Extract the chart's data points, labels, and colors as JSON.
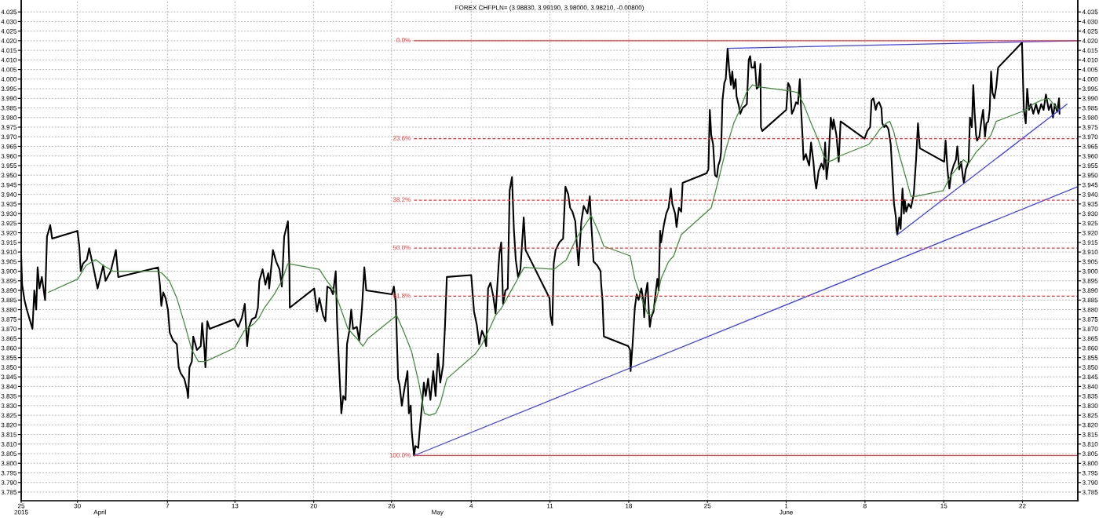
{
  "chart_data": {
    "type": "line",
    "title": "FOREX CHFPLN= (3.98830, 3.99190, 3.98000, 3.98210, -0.00800)",
    "xlim": [
      "2015-03-25T00:00",
      "2015-06-26T22:00"
    ],
    "xticks": [
      {
        "value": "2015-03-25",
        "label": "25"
      },
      {
        "value": "2015-03-30",
        "label": "30"
      },
      {
        "value": "2015-04-07",
        "label": "7"
      },
      {
        "value": "2015-04-13",
        "label": "13"
      },
      {
        "value": "2015-04-20",
        "label": "20"
      },
      {
        "value": "2015-04-26T22:00",
        "label": "26"
      },
      {
        "value": "2015-05-04",
        "label": "4"
      },
      {
        "value": "2015-05-11",
        "label": "11"
      },
      {
        "value": "2015-05-18",
        "label": "18"
      },
      {
        "value": "2015-05-25",
        "label": "25"
      },
      {
        "value": "2015-06-01",
        "label": "1"
      },
      {
        "value": "2015-06-08",
        "label": "8"
      },
      {
        "value": "2015-06-15",
        "label": "15"
      },
      {
        "value": "2015-06-22",
        "label": "22"
      }
    ],
    "x2lim": [
      "2015-03-25T00:00",
      "2015-06-26T22:00"
    ],
    "x2ticks": [
      {
        "value": "2015-03-25",
        "label": "2015"
      },
      {
        "value": "2015-04-01",
        "label": "April"
      },
      {
        "value": "2015-05-01",
        "label": "May"
      },
      {
        "value": "2015-06-01",
        "label": "June"
      }
    ],
    "ylim": [
      3.7805,
      4.0412
    ],
    "yticks": [
      3.785,
      {
        "value": 3.79,
        "label": "3.790"
      },
      3.795,
      {
        "value": 3.8,
        "label": "3.800"
      },
      3.805,
      {
        "value": 3.81,
        "label": "3.810"
      },
      3.815,
      {
        "value": 3.82,
        "label": "3.820"
      },
      3.825,
      {
        "value": 3.83,
        "label": "3.830"
      },
      3.835,
      {
        "value": 3.84,
        "label": "3.840"
      },
      3.845,
      {
        "value": 3.85,
        "label": "3.850"
      },
      3.855,
      {
        "value": 3.86,
        "label": "3.860"
      },
      3.865,
      {
        "value": 3.87,
        "label": "3.870"
      },
      3.875,
      {
        "value": 3.88,
        "label": "3.880"
      },
      3.885,
      {
        "value": 3.89,
        "label": "3.890"
      },
      3.895,
      {
        "value": 3.9,
        "label": "3.900"
      },
      3.905,
      {
        "value": 3.91,
        "label": "3.910"
      },
      3.915,
      {
        "value": 3.92,
        "label": "3.920"
      },
      3.925,
      {
        "value": 3.93,
        "label": "3.930"
      },
      3.935,
      {
        "value": 3.94,
        "label": "3.940"
      },
      3.945,
      {
        "value": 3.95,
        "label": "3.950"
      },
      3.955,
      {
        "value": 3.96,
        "label": "3.960"
      },
      3.965,
      {
        "value": 3.97,
        "label": "3.970"
      },
      3.975,
      {
        "value": 3.98,
        "label": "3.980"
      },
      3.985,
      {
        "value": 3.99,
        "label": "3.990"
      },
      3.995,
      {
        "value": 4.0,
        "label": "4.000"
      },
      4.005,
      {
        "value": 4.01,
        "label": "4.010"
      },
      4.015,
      {
        "value": 4.02,
        "label": "4.020"
      },
      4.025,
      {
        "value": 4.03,
        "label": "4.030"
      },
      4.035
    ],
    "y2lim": [
      3.7805,
      4.0412
    ],
    "y2ticks": [
      3.785,
      {
        "value": 3.79,
        "label": "3.790"
      },
      3.795,
      {
        "value": 3.8,
        "label": "3.800"
      },
      3.805,
      {
        "value": 3.81,
        "label": "3.810"
      },
      3.815,
      {
        "value": 3.82,
        "label": "3.820"
      },
      3.825,
      {
        "value": 3.83,
        "label": "3.830"
      },
      3.835,
      {
        "value": 3.84,
        "label": "3.840"
      },
      3.845,
      {
        "value": 3.85,
        "label": "3.850"
      },
      3.855,
      {
        "value": 3.86,
        "label": "3.860"
      },
      3.865,
      {
        "value": 3.87,
        "label": "3.870"
      },
      3.875,
      {
        "value": 3.88,
        "label": "3.880"
      },
      3.885,
      {
        "value": 3.89,
        "label": "3.890"
      },
      3.895,
      {
        "value": 3.9,
        "label": "3.900"
      },
      3.905,
      {
        "value": 3.91,
        "label": "3.910"
      },
      3.915,
      {
        "value": 3.92,
        "label": "3.920"
      },
      3.925,
      {
        "value": 3.93,
        "label": "3.930"
      },
      3.935,
      {
        "value": 3.94,
        "label": "3.940"
      },
      3.945,
      {
        "value": 3.95,
        "label": "3.950"
      },
      3.955,
      {
        "value": 3.96,
        "label": "3.960"
      },
      3.965,
      {
        "value": 3.97,
        "label": "3.970"
      },
      3.975,
      {
        "value": 3.98,
        "label": "3.980"
      },
      3.985,
      {
        "value": 3.99,
        "label": "3.990"
      },
      3.995,
      {
        "value": 4.0,
        "label": "4.000"
      },
      4.005,
      {
        "value": 4.01,
        "label": "4.010"
      },
      4.015,
      {
        "value": 4.02,
        "label": "4.020"
      },
      4.025,
      {
        "value": 4.03,
        "label": "4.030"
      },
      4.035
    ],
    "grid": true,
    "series": [
      {
        "color": "#000000",
        "x": [
          "2015-03-25T00:00",
          "2015-03-25T02:00",
          "2015-03-25T07:00",
          "2015-03-25T12:00",
          "2015-03-25T18:00",
          "2015-03-26T00:00",
          "2015-03-26T04:00",
          "2015-03-26T08:00",
          "2015-03-26T11:00",
          "2015-03-26T15:00",
          "2015-03-26T20:00",
          "2015-03-27T03:00",
          "2015-03-27T07:00",
          "2015-03-27T14:00",
          "2015-03-27T18:00",
          "2015-03-30T00:00",
          "2015-03-30T04:00",
          "2015-03-30T07:00",
          "2015-03-30T12:00",
          "2015-03-30T20:00",
          "2015-03-31T01:00",
          "2015-03-31T10:00",
          "2015-03-31T19:00",
          "2015-04-01T01:00",
          "2015-04-01T07:00",
          "2015-04-01T12:00",
          "2015-04-01T23:00",
          "2015-04-02T10:00",
          "2015-04-02T15:00",
          "2015-04-06T04:00",
          "2015-04-06T08:00",
          "2015-04-06T11:00",
          "2015-04-06T15:00",
          "2015-04-06T20:00",
          "2015-04-07T01:00",
          "2015-04-07T05:00",
          "2015-04-07T12:00",
          "2015-04-07T20:00",
          "2015-04-08T00:00",
          "2015-04-08T04:00",
          "2015-04-08T12:00",
          "2015-04-08T18:00",
          "2015-04-08T20:00",
          "2015-04-08T23:00",
          "2015-04-09T04:00",
          "2015-04-09T07:00",
          "2015-04-09T15:00",
          "2015-04-09T23:00",
          "2015-04-10T02:00",
          "2015-04-10T07:00",
          "2015-04-10T09:00",
          "2015-04-10T13:00",
          "2015-04-10T18:00",
          "2015-04-12T23:00",
          "2015-04-13T07:00",
          "2015-04-13T15:00",
          "2015-04-13T21:00",
          "2015-04-14T02:00",
          "2015-04-14T06:00",
          "2015-04-14T12:00",
          "2015-04-14T20:00",
          "2015-04-15T01:00",
          "2015-04-15T04:00",
          "2015-04-15T11:00",
          "2015-04-15T17:00",
          "2015-04-15T23:00",
          "2015-04-16T01:00",
          "2015-04-16T09:00",
          "2015-04-16T16:00",
          "2015-04-16T23:00",
          "2015-04-17T04:00",
          "2015-04-17T09:00",
          "2015-04-17T17:00",
          "2015-04-17T20:00",
          "2015-04-17T21:00",
          "2015-04-20T01:00",
          "2015-04-20T07:00",
          "2015-04-20T12:00",
          "2015-04-20T20:00",
          "2015-04-21T01:00",
          "2015-04-21T05:00",
          "2015-04-21T12:00",
          "2015-04-21T17:00",
          "2015-04-21T23:00",
          "2015-04-22T02:00",
          "2015-04-22T07:00",
          "2015-04-22T11:00",
          "2015-04-22T15:00",
          "2015-04-22T20:00",
          "2015-04-22T23:00",
          "2015-04-23T04:00",
          "2015-04-23T08:00",
          "2015-04-23T12:00",
          "2015-04-23T20:00",
          "2015-04-24T01:00",
          "2015-04-24T07:00",
          "2015-04-24T12:00",
          "2015-04-24T16:00",
          "2015-04-26T23:00",
          "2015-04-27T03:00",
          "2015-04-27T07:00",
          "2015-04-27T12:00",
          "2015-04-27T15:00",
          "2015-04-27T20:00",
          "2015-04-28T01:00",
          "2015-04-28T08:00",
          "2015-04-28T11:00",
          "2015-04-28T15:00",
          "2015-04-28T17:00",
          "2015-04-28T22:00",
          "2015-04-29T01:00",
          "2015-04-29T07:00",
          "2015-04-29T10:00",
          "2015-04-29T15:00",
          "2015-04-29T19:00",
          "2015-04-29T23:00",
          "2015-04-30T04:00",
          "2015-04-30T09:00",
          "2015-04-30T15:00",
          "2015-04-30T20:00",
          "2015-05-01T01:00",
          "2015-05-01T06:00",
          "2015-05-01T12:00",
          "2015-05-01T16:00",
          "2015-05-01T20:00",
          "2015-05-04T00:00",
          "2015-05-04T06:00",
          "2015-05-04T12:00",
          "2015-05-04T17:00",
          "2015-05-04T23:00",
          "2015-05-05T04:00",
          "2015-05-05T08:00",
          "2015-05-05T12:00",
          "2015-05-05T17:00",
          "2015-05-05T23:00",
          "2015-05-06T04:00",
          "2015-05-06T12:00",
          "2015-05-06T16:00",
          "2015-05-06T20:00",
          "2015-05-07T01:00",
          "2015-05-07T06:00",
          "2015-05-07T10:00",
          "2015-05-07T15:00",
          "2015-05-07T19:00",
          "2015-05-07T23:00",
          "2015-05-08T04:00",
          "2015-05-08T09:00",
          "2015-05-08T16:00",
          "2015-05-08T20:00",
          "2015-05-10T23:00",
          "2015-05-11T01:00",
          "2015-05-11T05:00",
          "2015-05-11T08:00",
          "2015-05-11T12:00",
          "2015-05-11T20:00",
          "2015-05-12T04:00",
          "2015-05-12T09:00",
          "2015-05-12T15:00",
          "2015-05-12T19:00",
          "2015-05-13T00:00",
          "2015-05-13T06:00",
          "2015-05-13T09:00",
          "2015-05-13T13:00",
          "2015-05-13T19:00",
          "2015-05-14T00:00",
          "2015-05-14T08:00",
          "2015-05-14T13:00",
          "2015-05-14T16:00",
          "2015-05-14T21:00",
          "2015-05-15T05:00",
          "2015-05-15T12:00",
          "2015-05-15T13:00",
          "2015-05-15T16:00",
          "2015-05-15T19:00",
          "2015-05-17T23:00",
          "2015-05-18T03:00",
          "2015-05-18T04:00",
          "2015-05-18T08:00",
          "2015-05-18T11:00",
          "2015-05-18T13:00",
          "2015-05-18T17:00",
          "2015-05-18T21:00",
          "2015-05-19T03:00",
          "2015-05-19T07:00",
          "2015-05-19T09:00",
          "2015-05-19T12:00",
          "2015-05-19T16:00",
          "2015-05-19T19:00",
          "2015-05-19T21:00",
          "2015-05-20T00:00",
          "2015-05-20T05:00",
          "2015-05-20T10:00",
          "2015-05-20T13:00",
          "2015-05-20T16:00",
          "2015-05-20T19:00",
          "2015-05-20T21:00",
          "2015-05-21T03:00",
          "2015-05-21T08:00",
          "2015-05-21T13:00",
          "2015-05-21T18:00",
          "2015-05-21T21:00",
          "2015-05-22T03:00",
          "2015-05-22T06:00",
          "2015-05-22T11:00",
          "2015-05-22T16:00",
          "2015-05-22T19:00",
          "2015-05-24T22:00",
          "2015-05-25T02:00",
          "2015-05-25T05:00",
          "2015-05-25T08:00",
          "2015-05-25T12:00",
          "2015-05-25T16:00",
          "2015-05-25T20:00",
          "2015-05-25T23:00",
          "2015-05-26T03:00",
          "2015-05-26T05:00",
          "2015-05-26T08:00",
          "2015-05-26T12:00",
          "2015-05-26T15:00",
          "2015-05-26T19:00",
          "2015-05-26T22:00",
          "2015-05-27T02:00",
          "2015-05-27T05:00",
          "2015-05-27T08:00",
          "2015-05-27T12:00",
          "2015-05-27T14:00",
          "2015-05-27T19:00",
          "2015-05-27T22:00",
          "2015-05-28T03:00",
          "2015-05-28T08:00",
          "2015-05-28T12:00",
          "2015-05-28T16:00",
          "2015-05-28T19:00",
          "2015-05-28T22:00",
          "2015-05-29T03:00",
          "2015-05-29T05:00",
          "2015-05-29T09:00",
          "2015-05-29T13:00",
          "2015-05-29T17:00",
          "2015-05-29T18:00",
          "2015-05-29T21:00",
          "2015-06-01T00:00",
          "2015-06-01T04:00",
          "2015-06-01T08:00",
          "2015-06-01T12:00",
          "2015-06-01T16:00",
          "2015-06-01T21:00",
          "2015-06-02T01:00",
          "2015-06-02T05:00",
          "2015-06-02T08:00",
          "2015-06-02T11:00",
          "2015-06-02T13:00",
          "2015-06-02T18:00",
          "2015-06-02T21:00",
          "2015-06-03T01:00",
          "2015-06-03T05:00",
          "2015-06-03T10:00",
          "2015-06-03T13:00",
          "2015-06-03T16:00",
          "2015-06-03T21:00",
          "2015-06-04T03:00",
          "2015-06-04T08:00",
          "2015-06-04T11:00",
          "2015-06-04T14:00",
          "2015-06-04T18:00",
          "2015-06-04T23:00",
          "2015-06-05T03:00",
          "2015-06-05T05:00",
          "2015-06-05T11:00",
          "2015-06-05T16:00",
          "2015-06-05T20:00",
          "2015-06-07T23:00",
          "2015-06-08T05:00",
          "2015-06-08T11:00",
          "2015-06-08T14:00",
          "2015-06-08T18:00",
          "2015-06-08T23:00",
          "2015-06-09T02:00",
          "2015-06-09T06:00",
          "2015-06-09T11:00",
          "2015-06-09T13:00",
          "2015-06-09T17:00",
          "2015-06-09T21:00",
          "2015-06-10T02:00",
          "2015-06-10T07:00",
          "2015-06-10T11:00",
          "2015-06-10T14:00",
          "2015-06-10T18:00",
          "2015-06-10T19:00",
          "2015-06-10T21:00",
          "2015-06-11T01:00",
          "2015-06-11T04:00",
          "2015-06-11T08:00",
          "2015-06-11T11:00",
          "2015-06-11T13:00",
          "2015-06-11T16:00",
          "2015-06-11T21:00",
          "2015-06-12T02:00",
          "2015-06-12T08:00",
          "2015-06-12T13:00",
          "2015-06-12T17:00",
          "2015-06-12T21:00",
          "2015-06-15T01:00",
          "2015-06-15T04:00",
          "2015-06-15T08:00",
          "2015-06-15T12:00",
          "2015-06-15T16:00",
          "2015-06-15T21:00",
          "2015-06-16T02:00",
          "2015-06-16T05:00",
          "2015-06-16T09:00",
          "2015-06-16T13:00",
          "2015-06-16T17:00",
          "2015-06-16T19:00",
          "2015-06-16T23:00",
          "2015-06-17T05:00",
          "2015-06-17T08:00",
          "2015-06-17T12:00",
          "2015-06-17T15:00",
          "2015-06-17T18:00",
          "2015-06-17T21:00",
          "2015-06-17T23:00",
          "2015-06-18T04:00",
          "2015-06-18T08:00",
          "2015-06-18T12:00",
          "2015-06-18T16:00",
          "2015-06-18T19:00",
          "2015-06-18T23:00",
          "2015-06-19T02:00",
          "2015-06-19T05:00",
          "2015-06-19T08:00",
          "2015-06-19T12:00",
          "2015-06-19T16:00",
          "2015-06-19T20:00",
          "2015-06-21T23:00",
          "2015-06-22T01:00",
          "2015-06-22T03:00",
          "2015-06-22T07:00",
          "2015-06-22T10:00",
          "2015-06-22T14:00",
          "2015-06-22T18:00",
          "2015-06-22T23:00",
          "2015-06-23T05:00",
          "2015-06-23T10:00",
          "2015-06-23T16:00",
          "2015-06-23T21:00",
          "2015-06-24T02:00",
          "2015-06-24T08:00",
          "2015-06-24T13:00",
          "2015-06-24T17:00",
          "2015-06-24T21:00",
          "2015-06-25T02:00",
          "2015-06-25T06:00",
          "2015-06-25T07:00"
        ],
        "values": [
          3.908,
          3.893,
          3.885,
          3.88,
          3.875,
          3.87,
          3.89,
          3.88,
          3.902,
          3.891,
          3.897,
          3.885,
          3.918,
          3.924,
          3.917,
          3.921,
          3.913,
          3.9,
          3.904,
          3.906,
          3.912,
          3.902,
          3.891,
          3.897,
          3.903,
          3.895,
          3.9,
          3.911,
          3.897,
          3.902,
          3.893,
          3.882,
          3.889,
          3.886,
          3.88,
          3.868,
          3.864,
          3.862,
          3.85,
          3.847,
          3.844,
          3.838,
          3.834,
          3.85,
          3.853,
          3.866,
          3.859,
          3.861,
          3.873,
          3.859,
          3.85,
          3.874,
          3.87,
          3.875,
          3.871,
          3.876,
          3.883,
          3.861,
          3.871,
          3.875,
          3.876,
          3.881,
          3.895,
          3.901,
          3.893,
          3.899,
          3.891,
          3.911,
          3.905,
          3.901,
          3.892,
          3.918,
          3.926,
          3.903,
          3.881,
          3.891,
          3.879,
          3.886,
          3.877,
          3.874,
          3.892,
          3.891,
          3.888,
          3.9,
          3.873,
          3.846,
          3.826,
          3.835,
          3.833,
          3.862,
          3.869,
          3.88,
          3.87,
          3.871,
          3.864,
          3.881,
          3.902,
          3.89,
          3.888,
          3.892,
          3.884,
          3.844,
          3.841,
          3.83,
          3.838,
          3.848,
          3.826,
          3.83,
          3.817,
          3.804,
          3.809,
          3.808,
          3.817,
          3.83,
          3.842,
          3.835,
          3.844,
          3.833,
          3.848,
          3.835,
          3.857,
          3.842,
          3.851,
          3.871,
          3.897,
          3.898,
          3.879,
          3.872,
          3.862,
          3.869,
          3.866,
          3.861,
          3.891,
          3.894,
          3.887,
          3.878,
          3.909,
          3.915,
          3.883,
          3.89,
          3.891,
          3.942,
          3.949,
          3.922,
          3.906,
          3.897,
          3.901,
          3.928,
          3.911,
          3.886,
          3.877,
          3.872,
          3.904,
          3.911,
          3.915,
          3.917,
          3.944,
          3.94,
          3.933,
          3.931,
          3.926,
          3.915,
          3.903,
          3.926,
          3.934,
          3.93,
          3.939,
          3.925,
          3.905,
          3.903,
          3.9,
          3.894,
          3.885,
          3.866,
          3.861,
          3.859,
          3.848,
          3.861,
          3.873,
          3.881,
          3.888,
          3.885,
          3.891,
          3.885,
          3.876,
          3.888,
          3.894,
          3.879,
          3.871,
          3.876,
          3.879,
          3.89,
          3.896,
          3.89,
          3.921,
          3.915,
          3.924,
          3.93,
          3.933,
          3.943,
          3.935,
          3.93,
          3.923,
          3.933,
          3.931,
          3.946,
          3.951,
          3.953,
          3.984,
          3.971,
          3.966,
          3.95,
          3.949,
          3.955,
          3.958,
          3.962,
          3.989,
          3.998,
          4.0,
          4.016,
          4.006,
          3.997,
          4.004,
          3.995,
          4.0,
          3.991,
          3.986,
          3.982,
          3.985,
          3.986,
          3.987,
          4.01,
          4.012,
          4.006,
          4.006,
          4.009,
          3.995,
          3.996,
          4.008,
          3.975,
          3.973,
          3.984,
          3.998,
          3.996,
          3.982,
          3.984,
          3.988,
          3.987,
          4.0,
          3.983,
          3.969,
          3.958,
          3.961,
          3.958,
          3.955,
          3.967,
          3.957,
          3.948,
          3.943,
          3.952,
          3.956,
          3.953,
          3.967,
          3.948,
          3.957,
          3.98,
          3.974,
          3.979,
          3.971,
          3.957,
          3.978,
          3.969,
          3.973,
          3.975,
          3.989,
          3.99,
          3.984,
          3.987,
          3.988,
          3.985,
          3.977,
          3.975,
          3.976,
          3.974,
          3.966,
          3.948,
          3.935,
          3.928,
          3.922,
          3.919,
          3.928,
          3.922,
          3.943,
          3.93,
          3.937,
          3.931,
          3.935,
          3.933,
          3.94,
          3.958,
          3.977,
          3.964,
          3.957,
          3.968,
          3.953,
          3.943,
          3.951,
          3.955,
          3.958,
          3.965,
          3.953,
          3.957,
          3.949,
          3.946,
          3.953,
          3.957,
          3.98,
          3.975,
          3.997,
          3.982,
          3.971,
          3.968,
          3.97,
          3.978,
          3.984,
          3.97,
          3.977,
          3.978,
          3.984,
          4.004,
          3.993,
          3.99,
          3.996,
          4.006,
          4.019,
          4.0,
          3.984,
          3.977,
          3.995,
          3.984,
          3.987,
          3.982,
          3.987,
          3.982,
          3.987,
          3.984,
          3.992,
          3.984,
          3.987,
          3.98,
          3.987,
          3.983,
          3.99,
          3.982
        ]
      },
      {
        "color": "#3d8b37",
        "x": [
          "2015-03-27T10:00",
          "2015-03-30T01:00",
          "2015-03-30T18:00",
          "2015-03-31T15:00",
          "2015-04-01T07:00",
          "2015-04-02T04:00",
          "2015-04-06T01:00",
          "2015-04-06T12:00",
          "2015-04-07T04:00",
          "2015-04-07T20:00",
          "2015-04-08T12:00",
          "2015-04-09T04:00",
          "2015-04-09T18:00",
          "2015-04-10T09:00",
          "2015-04-12T23:00",
          "2015-04-13T20:00",
          "2015-04-14T18:00",
          "2015-04-15T04:00",
          "2015-04-15T15:00",
          "2015-04-16T12:00",
          "2015-04-17T04:00",
          "2015-04-17T17:00",
          "2015-04-20T12:00",
          "2015-04-21T04:00",
          "2015-04-21T20:00",
          "2015-04-22T12:00",
          "2015-04-23T01:00",
          "2015-04-23T20:00",
          "2015-04-24T09:00",
          "2015-04-24T20:00",
          "2015-04-27T09:00",
          "2015-04-28T01:00",
          "2015-04-28T17:00",
          "2015-04-29T09:00",
          "2015-04-29T20:00",
          "2015-04-30T07:00",
          "2015-04-30T20:00",
          "2015-05-01T06:00",
          "2015-05-01T20:00",
          "2015-05-04T09:00",
          "2015-05-04T23:00",
          "2015-05-05T15:00",
          "2015-05-06T04:00",
          "2015-05-06T17:00",
          "2015-05-07T09:00",
          "2015-05-08T01:00",
          "2015-05-08T17:00",
          "2015-05-11T09:00",
          "2015-05-12T11:00",
          "2015-05-13T08:00",
          "2015-05-14T00:00",
          "2015-05-14T16:00",
          "2015-05-15T05:00",
          "2015-05-15T19:00",
          "2015-05-18T03:00",
          "2015-05-18T13:00",
          "2015-05-19T03:00",
          "2015-05-19T16:00",
          "2015-05-20T00:00",
          "2015-05-20T11:00",
          "2015-05-20T21:00",
          "2015-05-21T13:00",
          "2015-05-22T00:00",
          "2015-05-22T16:00",
          "2015-05-25T08:00",
          "2015-05-26T00:00",
          "2015-05-26T16:00",
          "2015-05-27T08:00",
          "2015-05-27T21:00",
          "2015-05-28T11:00",
          "2015-05-29T00:00",
          "2015-05-29T13:00",
          "2015-06-01T05:00",
          "2015-06-02T00:00",
          "2015-06-02T13:00",
          "2015-06-03T05:00",
          "2015-06-03T21:00",
          "2015-06-04T08:00",
          "2015-06-04T18:00",
          "2015-06-05T05:00",
          "2015-06-05T18:00",
          "2015-06-08T08:00",
          "2015-06-08T18:00",
          "2015-06-09T08:00",
          "2015-06-09T21:00",
          "2015-06-10T05:00",
          "2015-06-10T13:00",
          "2015-06-11T02:00",
          "2015-06-11T16:00",
          "2015-06-12T02:00",
          "2015-06-12T13:00",
          "2015-06-14T23:00",
          "2015-06-15T13:00",
          "2015-06-16T02:00",
          "2015-06-16T18:00",
          "2015-06-17T05:00",
          "2015-06-17T21:00",
          "2015-06-18T13:00",
          "2015-06-19T05:00",
          "2015-06-19T16:00",
          "2015-06-22T08:00",
          "2015-06-22T23:00",
          "2015-06-23T16:00",
          "2015-06-24T08:00",
          "2015-06-24T18:00",
          "2015-06-25T05:00"
        ],
        "values": [
          3.889,
          3.896,
          3.903,
          3.906,
          3.903,
          3.9,
          3.9,
          3.899,
          3.895,
          3.886,
          3.873,
          3.859,
          3.853,
          3.853,
          3.86,
          3.869,
          3.873,
          3.876,
          3.881,
          3.888,
          3.895,
          3.904,
          3.901,
          3.895,
          3.89,
          3.879,
          3.87,
          3.865,
          3.861,
          3.865,
          3.877,
          3.868,
          3.858,
          3.841,
          3.826,
          3.825,
          3.826,
          3.831,
          3.844,
          3.857,
          3.862,
          3.87,
          3.877,
          3.881,
          3.888,
          3.895,
          3.902,
          3.901,
          3.906,
          3.917,
          3.923,
          3.929,
          3.922,
          3.913,
          3.908,
          3.896,
          3.886,
          3.878,
          3.877,
          3.885,
          3.896,
          3.905,
          3.908,
          3.919,
          3.933,
          3.948,
          3.964,
          3.977,
          3.984,
          3.993,
          3.997,
          3.996,
          3.994,
          3.993,
          3.987,
          3.977,
          3.968,
          3.96,
          3.957,
          3.958,
          3.96,
          3.966,
          3.969,
          3.974,
          3.977,
          3.978,
          3.973,
          3.96,
          3.948,
          3.939,
          3.939,
          3.942,
          3.949,
          3.953,
          3.958,
          3.956,
          3.962,
          3.966,
          3.971,
          3.978,
          3.984,
          3.987,
          3.989,
          3.99,
          3.987,
          3.984
        ]
      },
      {
        "color": "#3c3cff",
        "x": [
          "2015-05-26T19:00",
          "2015-06-26T22:00"
        ],
        "values": [
          4.016,
          4.02
        ]
      },
      {
        "color": "#3c3cff",
        "x": [
          "2015-04-28T22:00",
          "2015-06-26T22:00"
        ],
        "values": [
          3.804,
          3.944
        ]
      },
      {
        "color": "#3c3cff",
        "x": [
          "2015-06-10T21:00",
          "2015-06-25T23:00"
        ],
        "values": [
          3.919,
          3.987
        ]
      },
      {
        "name": "0.0%",
        "color": "#ff3030",
        "line_style": "solid",
        "x": [
          "2015-04-28T22:00",
          "2015-06-26T22:00"
        ],
        "values": [
          4.02,
          4.02
        ]
      },
      {
        "name": "23.6%",
        "color": "#ff3030",
        "line_style": "dashed",
        "x": [
          "2015-04-28T22:00",
          "2015-06-26T22:00"
        ],
        "values": [
          3.969,
          3.969
        ]
      },
      {
        "name": "38.2%",
        "color": "#ff3030",
        "line_style": "dashed",
        "x": [
          "2015-04-28T22:00",
          "2015-06-26T22:00"
        ],
        "values": [
          3.937,
          3.937
        ]
      },
      {
        "name": "50.0%",
        "color": "#ff3030",
        "line_style": "dashed",
        "x": [
          "2015-04-28T22:00",
          "2015-06-26T22:00"
        ],
        "values": [
          3.912,
          3.912
        ]
      },
      {
        "name": "61.8%",
        "color": "#ff3030",
        "line_style": "dashed",
        "x": [
          "2015-04-28T22:00",
          "2015-06-26T22:00"
        ],
        "values": [
          3.887,
          3.887
        ]
      },
      {
        "name": "100.0%",
        "color": "#ff3030",
        "line_style": "solid",
        "x": [
          "2015-04-28T22:00",
          "2015-06-26T22:00"
        ],
        "values": [
          3.804,
          3.804
        ]
      }
    ]
  }
}
